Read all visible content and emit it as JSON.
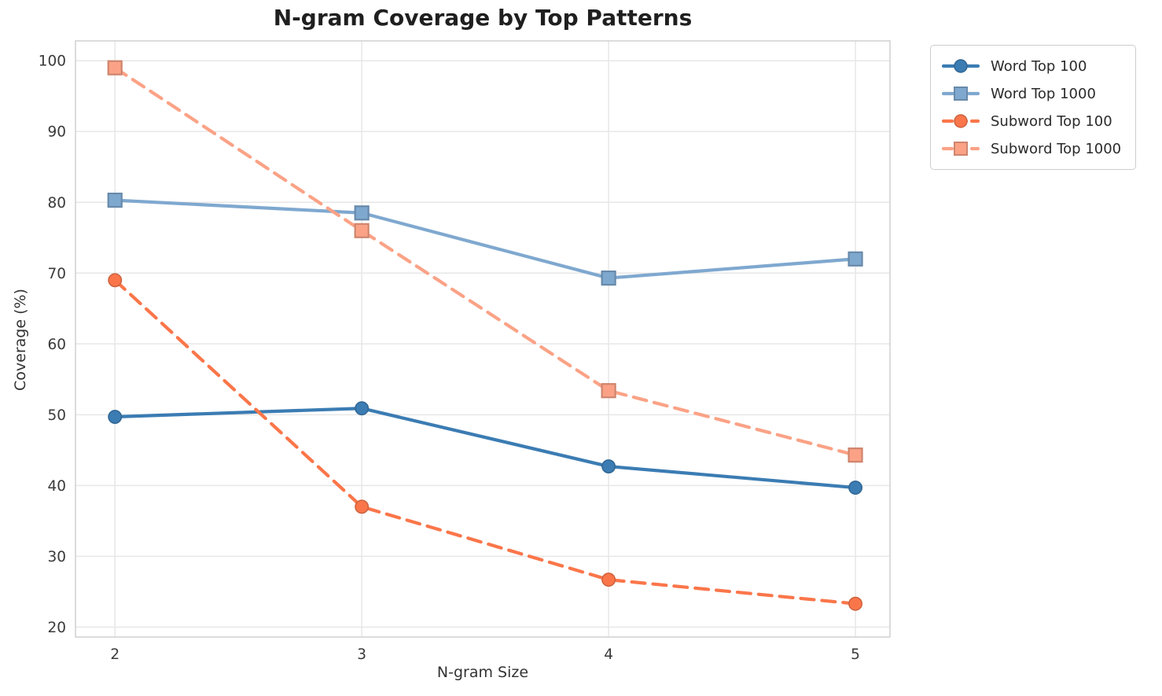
{
  "chart_data": {
    "type": "line",
    "title": "N-gram Coverage by Top Patterns",
    "xlabel": "N-gram Size",
    "ylabel": "Coverage (%)",
    "x": [
      2,
      3,
      4,
      5
    ],
    "x_ticks": [
      2,
      3,
      4,
      5
    ],
    "y_ticks": [
      20,
      30,
      40,
      50,
      60,
      70,
      80,
      90,
      100
    ],
    "xlim": [
      1.84,
      5.14
    ],
    "ylim": [
      18.6,
      102.8
    ],
    "grid": true,
    "legend_position": "outside-upper-right",
    "series": [
      {
        "name": "Word Top 100",
        "values": [
          49.7,
          50.9,
          42.7,
          39.7
        ],
        "color": "#3b7cb3",
        "line_style": "solid",
        "marker": "circle"
      },
      {
        "name": "Word Top 1000",
        "values": [
          80.3,
          78.5,
          69.3,
          72.0
        ],
        "color": "#7fa8cf",
        "line_style": "solid",
        "marker": "square"
      },
      {
        "name": "Subword Top 100",
        "values": [
          69.0,
          37.0,
          26.7,
          23.3
        ],
        "color": "#fa764a",
        "line_style": "dashed",
        "marker": "circle"
      },
      {
        "name": "Subword Top 1000",
        "values": [
          99.0,
          76.0,
          53.4,
          44.3
        ],
        "color": "#fba286",
        "line_style": "dashed",
        "marker": "square"
      }
    ],
    "colors": {
      "grid_line": "#e7e7e7",
      "spine": "#d0d0d0",
      "tick_label": "#3a3a3a",
      "title_text": "#1f1f1f"
    }
  }
}
